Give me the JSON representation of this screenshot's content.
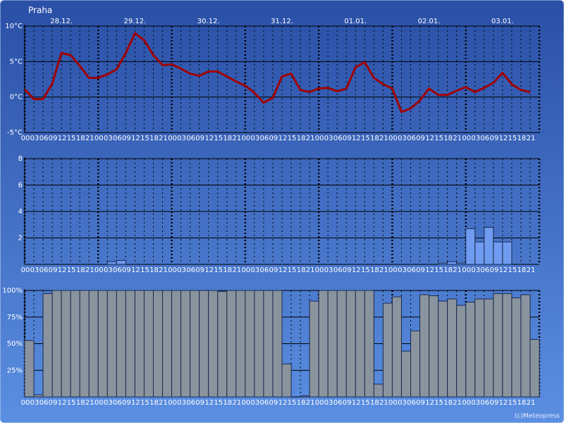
{
  "chart_data": [
    {
      "type": "line",
      "title": "Praha",
      "day_labels": [
        "28.12.",
        "29.12.",
        "30.12.",
        "31.12.",
        "01.01.",
        "02.01.",
        "03.01."
      ],
      "categories": [
        "00",
        "03",
        "06",
        "09",
        "12",
        "15",
        "18",
        "21",
        "00",
        "03",
        "06",
        "09",
        "12",
        "15",
        "18",
        "21",
        "00",
        "03",
        "06",
        "09",
        "12",
        "15",
        "18",
        "21",
        "00",
        "03",
        "06",
        "09",
        "12",
        "15",
        "18",
        "21",
        "00",
        "03",
        "06",
        "09",
        "12",
        "15",
        "18",
        "21",
        "00",
        "03",
        "06",
        "09",
        "12",
        "15",
        "18",
        "21",
        "00",
        "03",
        "06",
        "09",
        "12",
        "15",
        "18",
        "21"
      ],
      "values": [
        1.1,
        -0.3,
        -0.3,
        1.9,
        6.2,
        5.9,
        4.4,
        2.7,
        2.7,
        3.2,
        3.9,
        6.2,
        9.0,
        8.0,
        5.9,
        4.5,
        4.6,
        4.0,
        3.3,
        3.0,
        3.6,
        3.6,
        2.9,
        2.2,
        1.6,
        0.6,
        -0.8,
        -0.1,
        2.9,
        3.3,
        1.0,
        0.7,
        1.2,
        1.3,
        0.8,
        1.2,
        4.2,
        4.9,
        2.7,
        1.8,
        1.2,
        -2.1,
        -1.6,
        -0.5,
        1.2,
        0.3,
        0.3,
        0.9,
        1.4,
        0.7,
        1.3,
        2.0,
        3.4,
        1.8,
        1.0,
        0.7
      ],
      "color": "#a00000",
      "ylim": [
        -5,
        10
      ],
      "yticks": [
        {
          "value": -5,
          "label": "-5°C"
        },
        {
          "value": 0,
          "label": "0°C"
        },
        {
          "value": 5,
          "label": "5°C"
        },
        {
          "value": 10,
          "label": "10°C"
        }
      ],
      "grid": true
    },
    {
      "type": "bar",
      "categories": [
        "00",
        "03",
        "06",
        "09",
        "12",
        "15",
        "18",
        "21",
        "00",
        "03",
        "06",
        "09",
        "12",
        "15",
        "18",
        "21",
        "00",
        "03",
        "06",
        "09",
        "12",
        "15",
        "18",
        "21",
        "00",
        "03",
        "06",
        "09",
        "12",
        "15",
        "18",
        "21",
        "00",
        "03",
        "06",
        "09",
        "12",
        "15",
        "18",
        "21",
        "00",
        "03",
        "06",
        "09",
        "12",
        "15",
        "18",
        "21",
        "00",
        "03",
        "06",
        "09",
        "12",
        "15",
        "18",
        "21"
      ],
      "values": [
        0,
        0,
        0,
        0,
        0,
        0,
        0,
        0,
        0,
        0.2,
        0.3,
        0,
        0,
        0,
        0,
        0,
        0,
        0,
        0,
        0,
        0,
        0,
        0,
        0,
        0,
        0,
        0,
        0,
        0,
        0,
        0,
        0,
        0,
        0,
        0,
        0,
        0,
        0,
        0,
        0,
        0,
        0,
        0,
        0,
        0,
        0.1,
        0.2,
        0.1,
        2.7,
        1.7,
        2.8,
        1.7,
        1.7,
        0,
        0,
        0
      ],
      "color": "#6f9cf0",
      "ylim": [
        0,
        8
      ],
      "yticks": [
        2,
        4,
        6,
        8
      ],
      "grid": true
    },
    {
      "type": "bar",
      "categories": [
        "00",
        "03",
        "06",
        "09",
        "12",
        "15",
        "18",
        "21",
        "00",
        "03",
        "06",
        "09",
        "12",
        "15",
        "18",
        "21",
        "00",
        "03",
        "06",
        "09",
        "12",
        "15",
        "18",
        "21",
        "00",
        "03",
        "06",
        "09",
        "12",
        "15",
        "18",
        "21",
        "00",
        "03",
        "06",
        "09",
        "12",
        "15",
        "18",
        "21",
        "00",
        "03",
        "06",
        "09",
        "12",
        "15",
        "18",
        "21",
        "00",
        "03",
        "06",
        "09",
        "12",
        "15",
        "18",
        "21"
      ],
      "values": [
        53,
        2,
        97,
        100,
        100,
        100,
        100,
        100,
        100,
        100,
        100,
        100,
        100,
        100,
        100,
        100,
        100,
        100,
        100,
        100,
        100,
        99,
        100,
        100,
        100,
        100,
        100,
        100,
        31,
        0,
        1,
        90,
        100,
        100,
        100,
        100,
        100,
        100,
        12,
        88,
        94,
        43,
        62,
        96,
        95,
        90,
        92,
        86,
        89,
        92,
        92,
        97,
        97,
        93,
        96,
        54
      ],
      "color": "#8a949e",
      "ylim": [
        0,
        100
      ],
      "yticks": [
        {
          "value": 25,
          "label": "25%"
        },
        {
          "value": 50,
          "label": "50%"
        },
        {
          "value": 75,
          "label": "75%"
        },
        {
          "value": 100,
          "label": "100%"
        }
      ],
      "grid": true
    }
  ],
  "credit": "(c)Meteopress"
}
